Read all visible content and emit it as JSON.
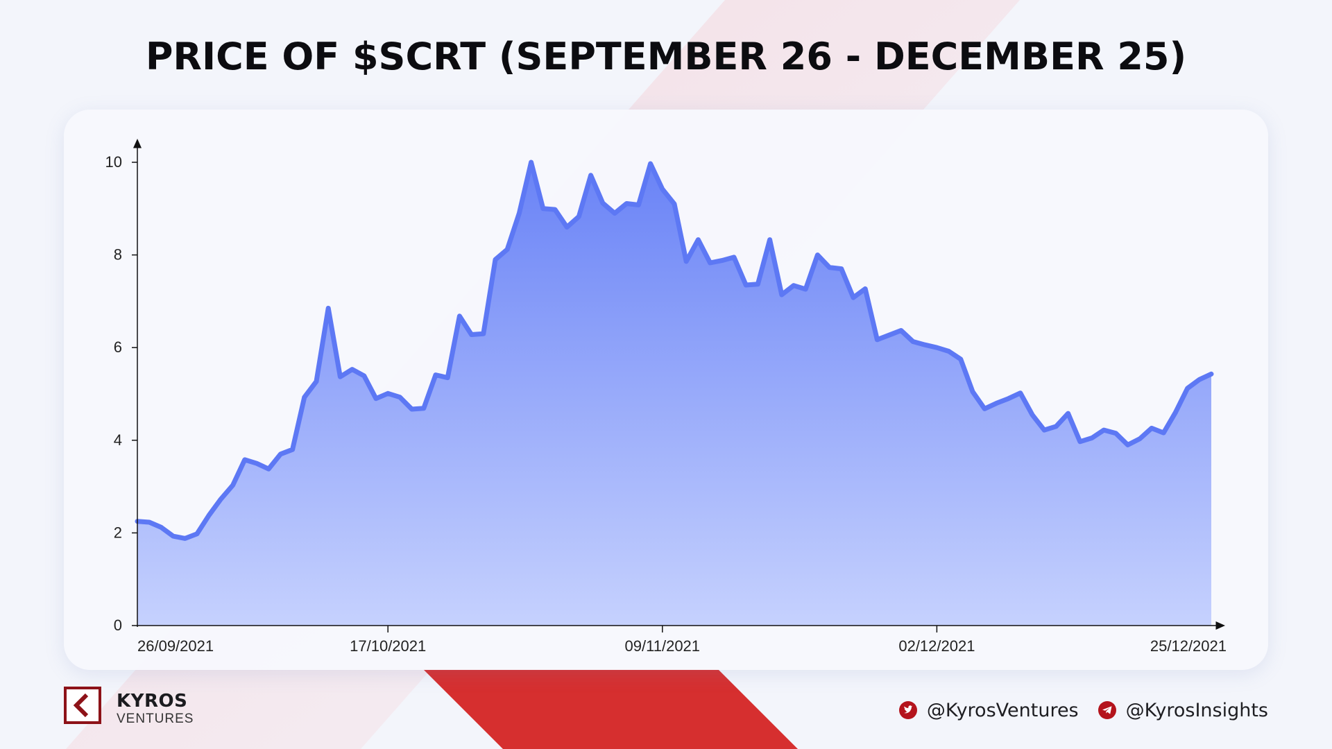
{
  "title": "PRICE OF $SCRT (SEPTEMBER 26 - DECEMBER 25)",
  "colors": {
    "line": "#5d78f4",
    "fill_top": "#6680f6",
    "fill_bottom": "#c3cffe",
    "accent_red": "#d62f2f",
    "brand_red": "#8d1218"
  },
  "chart_data": {
    "type": "area",
    "title": "PRICE OF $SCRT (SEPTEMBER 26 - DECEMBER 25)",
    "xlabel": "",
    "ylabel": "",
    "ylim": [
      0,
      10
    ],
    "yticks": [
      0,
      2,
      4,
      6,
      8,
      10
    ],
    "ytick_labels": [
      "0",
      "2",
      "4",
      "6",
      "8",
      "10"
    ],
    "x_start_date": "2021-09-26",
    "x_end_date": "2021-12-25",
    "xticks": [
      {
        "date": "2021-09-26",
        "label": "26/09/2021"
      },
      {
        "date": "2021-10-17",
        "label": "17/10/2021"
      },
      {
        "date": "2021-11-09",
        "label": "09/11/2021"
      },
      {
        "date": "2021-12-02",
        "label": "02/12/2021"
      },
      {
        "date": "2021-12-25",
        "label": "25/12/2021"
      }
    ],
    "grid": false,
    "series": [
      {
        "values": [
          2.25,
          2.23,
          2.12,
          1.93,
          1.88,
          1.98,
          2.38,
          2.73,
          3.03,
          3.58,
          3.5,
          3.38,
          3.7,
          3.8,
          4.93,
          5.27,
          6.85,
          5.37,
          5.53,
          5.39,
          4.9,
          5.01,
          4.93,
          4.67,
          4.69,
          5.41,
          5.35,
          6.68,
          6.28,
          6.3,
          7.9,
          8.12,
          8.9,
          10.0,
          9.0,
          8.98,
          8.6,
          8.83,
          9.72,
          9.12,
          8.9,
          9.11,
          9.08,
          9.97,
          9.42,
          9.1,
          7.86,
          8.33,
          7.83,
          7.88,
          7.95,
          7.35,
          7.37,
          8.33,
          7.14,
          7.34,
          7.26,
          8.0,
          7.73,
          7.7,
          7.08,
          7.27,
          6.17,
          6.27,
          6.37,
          6.13,
          6.06,
          6.0,
          5.92,
          5.75,
          5.05,
          4.68,
          4.8,
          4.9,
          5.02,
          4.55,
          4.22,
          4.3,
          4.58,
          3.97,
          4.05,
          4.22,
          4.15,
          3.9,
          4.03,
          4.26,
          4.16,
          4.6,
          5.12,
          5.31,
          5.43
        ]
      }
    ]
  },
  "brand": {
    "name": "KYROS",
    "sub": "VENTURES"
  },
  "socials": [
    {
      "icon": "twitter-icon",
      "handle": "@KyrosVentures"
    },
    {
      "icon": "telegram-icon",
      "handle": "@KyrosInsights"
    }
  ]
}
